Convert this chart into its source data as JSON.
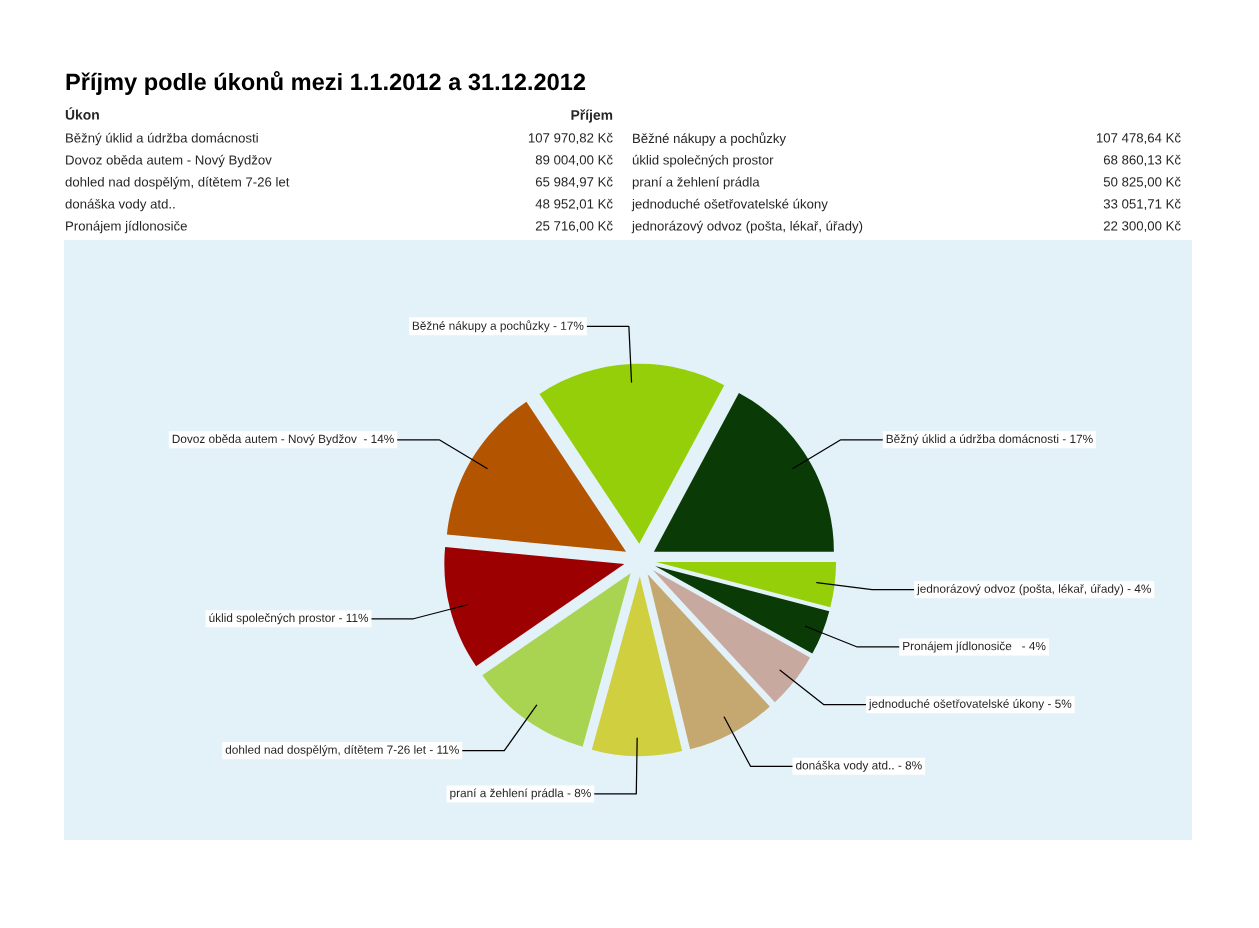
{
  "chart_data": [
    {
      "type": "other",
      "title": "Příjmy podle úkonů mezi 1.1.2012 a 31.12.2012",
      "annotations": [
        "Úkon",
        "Příjem",
        "Běžný úklid a údržba domácnosti",
        "107 970,82 Kč",
        "Běžné nákupy a pochůzky",
        "107 478,64 Kč",
        "Dovoz oběda autem - Nový Bydžov",
        "89 004,00 Kč",
        "úklid společných prostor",
        "68 860,13 Kč",
        "dohled nad dospělým, dítětem 7-26 let",
        "65 984,97 Kč",
        "praní a žehlení prádla",
        "50 825,00 Kč",
        "donáška vody atd..",
        "48 952,01 Kč",
        "jednoduché ošetřovatelské úkony",
        "33 051,71 Kč",
        "Pronájem jídlonosiče",
        "25 716,00 Kč",
        "jednorázový odvoz (pošta, lékař, úřady)",
        "22 300,00 Kč"
      ]
    },
    {
      "type": "pie",
      "categories": [
        "Běžný úklid a údržba domácnosti - 17%",
        "Běžné nákupy a pochůzky - 17%",
        "Dovoz oběda autem - Nový Bydžov  - 14%",
        "úklid společných prostor - 11%",
        "dohled nad dospělým, dítětem 7-26 let - 11%",
        "praní a žehlení prádla - 8%",
        "donáška vody atd.. - 8%",
        "jednoduché ošetřovatelské úkony - 5%",
        "Pronájem jídlonosiče   - 4%",
        "jednorázový odvoz (pošta, lékař, úřady) - 4%"
      ],
      "values": [
        17,
        17,
        14,
        11,
        11,
        8,
        8,
        5,
        4,
        4
      ],
      "colors": [
        "#0a3a06",
        "#95cf0a",
        "#b35500",
        "#9c0000",
        "#a9d451",
        "#cfcf40",
        "#c5a870",
        "#c7a99f",
        "#0a3a06",
        "#95cf0a"
      ]
    }
  ]
}
